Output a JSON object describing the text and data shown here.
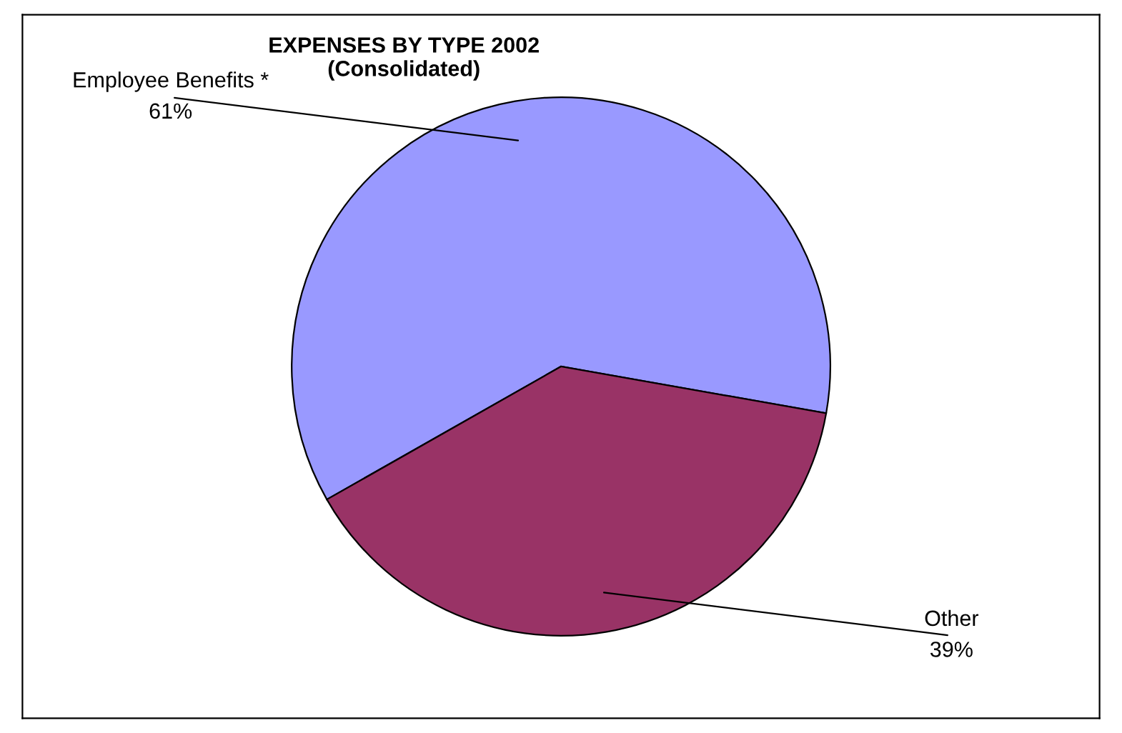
{
  "chart_data": {
    "type": "pie",
    "title": "EXPENSES BY TYPE 2002\n(Consolidated)",
    "categories": [
      "Employee Benefits *",
      "Other"
    ],
    "values": [
      61,
      39
    ],
    "value_labels": [
      "61%",
      "39%"
    ],
    "colors": [
      "#9999ff",
      "#993366"
    ],
    "legend": false
  }
}
